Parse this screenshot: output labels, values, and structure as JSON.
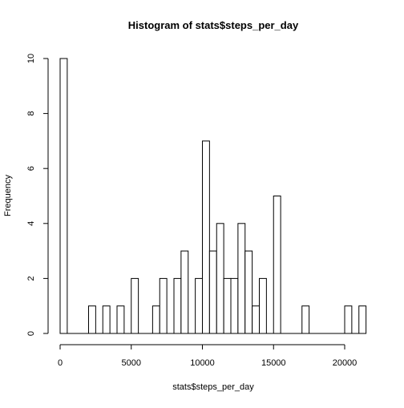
{
  "chart_data": {
    "type": "bar",
    "title": "Histogram of stats$steps_per_day",
    "xlabel": "stats$steps_per_day",
    "ylabel": "Frequency",
    "bin_width": 500,
    "xlim": [
      0,
      22000
    ],
    "ylim": [
      0,
      10
    ],
    "x_ticks": [
      0,
      5000,
      10000,
      15000,
      20000
    ],
    "y_ticks": [
      0,
      2,
      4,
      6,
      8,
      10
    ],
    "bins_start": [
      0,
      500,
      1000,
      1500,
      2000,
      2500,
      3000,
      3500,
      4000,
      4500,
      5000,
      5500,
      6000,
      6500,
      7000,
      7500,
      8000,
      8500,
      9000,
      9500,
      10000,
      10500,
      11000,
      11500,
      12000,
      12500,
      13000,
      13500,
      14000,
      14500,
      15000,
      15500,
      16000,
      16500,
      17000,
      17500,
      18000,
      18500,
      19000,
      19500,
      20000,
      20500,
      21000
    ],
    "values": [
      10,
      0,
      0,
      0,
      1,
      0,
      1,
      0,
      1,
      0,
      2,
      0,
      0,
      1,
      2,
      0,
      2,
      3,
      0,
      2,
      7,
      3,
      4,
      2,
      2,
      4,
      3,
      1,
      2,
      0,
      5,
      0,
      0,
      0,
      1,
      0,
      0,
      0,
      0,
      0,
      1,
      0,
      1
    ],
    "grid": false,
    "legend": "none",
    "colors": {
      "bar_fill": "#ffffff",
      "bar_stroke": "#000000",
      "axis": "#000000"
    }
  }
}
